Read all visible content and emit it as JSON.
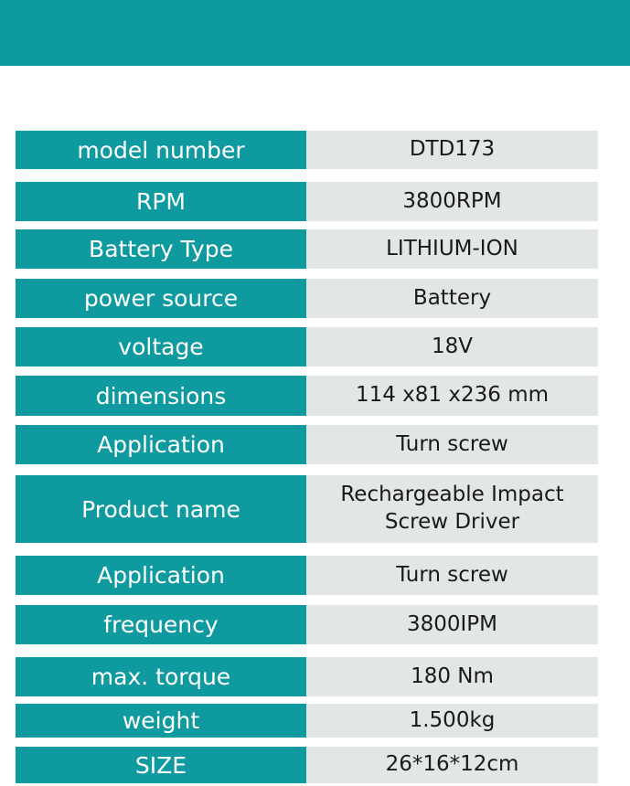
{
  "specs": [
    {
      "label": "model number",
      "value": "DTD173"
    },
    {
      "label": "RPM",
      "value": "3800RPM"
    },
    {
      "label": "Battery Type",
      "value": "LITHIUM-ION"
    },
    {
      "label": "power source",
      "value": "Battery"
    },
    {
      "label": "voltage",
      "value": "18V"
    },
    {
      "label": "dimensions",
      "value": "114 x81 x236 mm"
    },
    {
      "label": "Application",
      "value": "Turn screw"
    },
    {
      "label": "Product name",
      "value": "Rechargeable Impact\nScrew Driver"
    },
    {
      "label": "Application",
      "value": "Turn screw"
    },
    {
      "label": "frequency",
      "value": "3800IPM"
    },
    {
      "label": "max. torque",
      "value": "180 Nm"
    },
    {
      "label": "weight",
      "value": "1.500kg"
    },
    {
      "label": "SIZE",
      "value": "26*16*12cm"
    }
  ]
}
